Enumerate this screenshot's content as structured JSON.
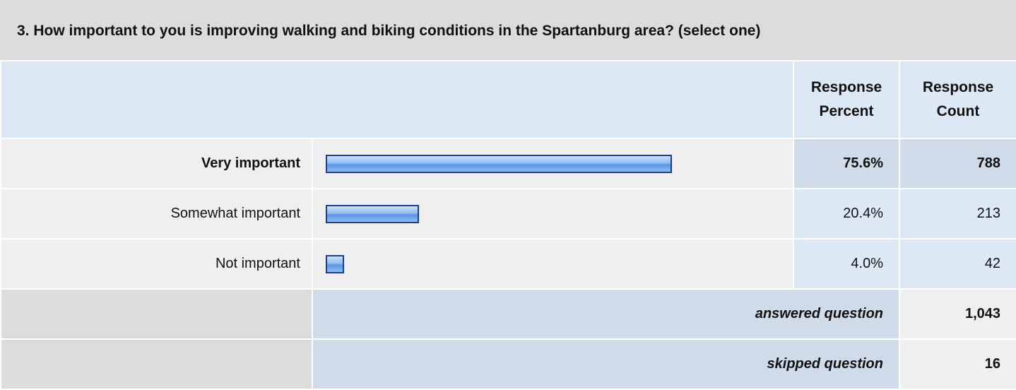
{
  "question": {
    "title": "3. How important to you is improving walking and biking conditions in the Spartanburg area? (select one)"
  },
  "header": {
    "percent": "Response Percent",
    "count": "Response Count"
  },
  "rows": [
    {
      "label": "Very important",
      "percent": 75.6,
      "percent_label": "75.6%",
      "count": 788
    },
    {
      "label": "Somewhat important",
      "percent": 20.4,
      "percent_label": "20.4%",
      "count": 213
    },
    {
      "label": "Not important",
      "percent": 4.0,
      "percent_label": "4.0%",
      "count": 42
    }
  ],
  "summary": {
    "answered_label": "answered question",
    "answered": "1,043",
    "skipped_label": "skipped question",
    "skipped": 16
  }
}
